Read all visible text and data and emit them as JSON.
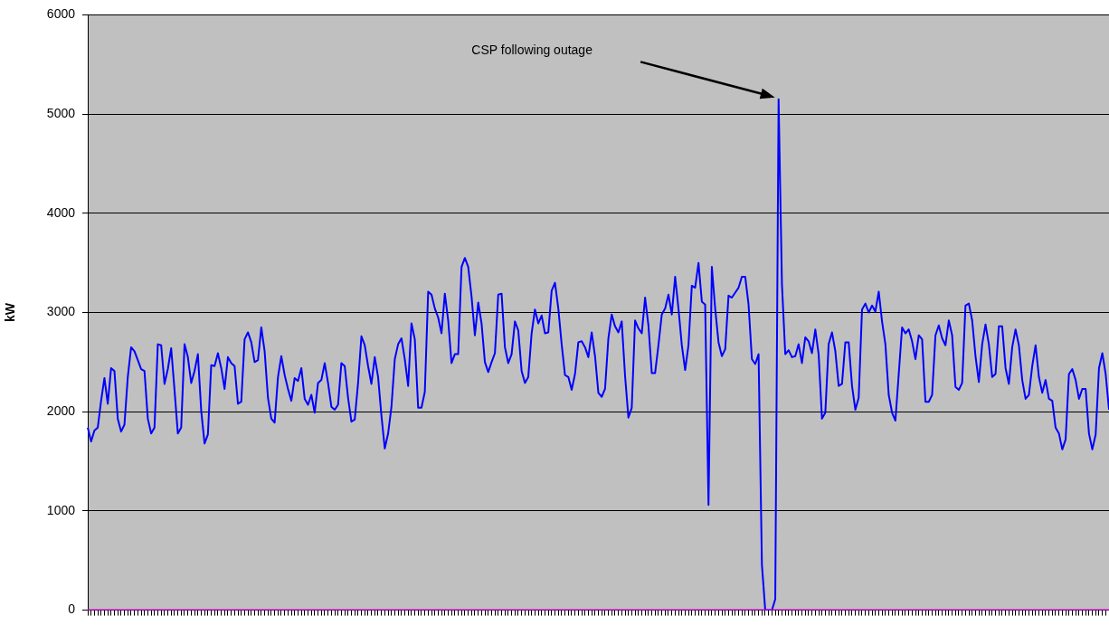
{
  "chart_data": {
    "type": "line",
    "ylabel": "kW",
    "ylim": [
      0,
      6000
    ],
    "yticks": [
      0,
      1000,
      2000,
      3000,
      4000,
      5000,
      6000
    ],
    "grid": "y",
    "tick_labels": "y",
    "legend": false,
    "marker": "none",
    "annotations": [
      "CSP following outage"
    ],
    "categories": [
      null,
      null,
      null,
      null,
      null,
      null,
      null,
      null,
      null,
      null,
      null,
      null,
      null,
      null,
      null,
      null,
      null,
      null,
      null,
      null,
      null,
      null,
      null,
      null,
      null,
      null,
      null,
      null,
      null,
      null,
      null,
      null,
      null,
      null,
      null,
      null,
      null,
      null,
      null,
      null,
      null,
      null,
      null,
      null,
      null,
      null,
      null,
      null,
      null,
      null,
      null,
      null,
      null,
      null,
      null,
      null,
      null,
      null,
      null,
      null,
      null,
      null,
      null,
      null,
      null,
      null,
      null,
      null,
      null,
      null,
      null,
      null,
      null,
      null,
      null,
      null,
      null,
      null,
      null,
      null,
      null,
      null,
      null,
      null,
      null,
      null,
      null,
      null,
      null,
      null,
      null,
      null,
      null,
      null,
      null,
      null,
      null,
      null,
      null,
      null,
      null,
      null,
      null,
      null,
      null,
      null,
      null,
      null,
      null,
      null,
      null,
      null,
      null,
      null,
      null,
      null,
      null,
      null,
      null,
      null,
      null,
      null,
      null,
      null,
      null,
      null,
      null,
      null,
      null,
      null,
      null,
      null,
      null,
      null,
      null,
      null,
      null,
      null,
      null,
      null,
      null,
      null,
      null,
      null,
      null,
      null,
      null,
      null,
      null,
      null,
      null,
      null,
      null,
      null,
      null,
      null,
      null,
      null,
      null,
      null,
      null,
      null,
      null,
      null,
      null,
      null,
      null,
      null,
      null,
      null,
      null,
      null,
      null,
      null,
      null,
      null,
      null,
      null,
      null,
      null,
      null,
      null,
      null,
      null,
      null,
      null,
      null,
      null,
      null,
      null,
      null,
      null,
      null,
      null,
      null,
      null,
      null,
      null,
      null,
      null,
      null,
      null,
      null,
      null,
      null,
      null,
      null,
      null,
      null,
      null,
      null,
      null,
      null,
      null,
      null,
      null,
      null,
      null,
      null,
      null,
      null,
      null,
      null,
      null,
      null,
      null,
      null,
      null,
      null,
      null,
      null,
      null,
      null,
      null,
      null,
      null,
      null,
      null,
      null,
      null,
      null,
      null,
      null,
      null,
      null,
      null,
      null,
      null,
      null,
      null,
      null,
      null,
      null,
      null,
      null,
      null,
      null,
      null,
      null,
      null,
      null,
      null,
      null,
      null,
      null,
      null,
      null,
      null,
      null,
      null,
      null,
      null,
      null,
      null,
      null,
      null,
      null,
      null,
      null,
      null,
      null,
      null,
      null,
      null,
      null,
      null,
      null,
      null,
      null,
      null,
      null,
      null,
      null,
      null,
      null,
      null,
      null,
      null,
      null,
      null,
      null,
      null,
      null,
      null,
      null,
      null,
      null
    ],
    "series": [
      {
        "color": "#ff00ff",
        "values": [
          0,
          0,
          0,
          0,
          0,
          0,
          0,
          0,
          0,
          0,
          0,
          0,
          0,
          0,
          0,
          0,
          0,
          0,
          0,
          0,
          0,
          0,
          0,
          0,
          0,
          0,
          0,
          0,
          0,
          0,
          0,
          0,
          0,
          0,
          0,
          0,
          0,
          0,
          0,
          0,
          0,
          0,
          0,
          0,
          0,
          0,
          0,
          0,
          0,
          0,
          0,
          0,
          0,
          0,
          0,
          0,
          0,
          0,
          0,
          0,
          0,
          0,
          0,
          0,
          0,
          0,
          0,
          0,
          0,
          0,
          0,
          0,
          0,
          0,
          0,
          0,
          0,
          0,
          0,
          0,
          0,
          0,
          0,
          0,
          0,
          0,
          0,
          0,
          0,
          0,
          0,
          0,
          0,
          0,
          0,
          0,
          0,
          0,
          0,
          0,
          0,
          0,
          0,
          0,
          0,
          0,
          0,
          0,
          0,
          0,
          0,
          0,
          0,
          0,
          0,
          0,
          0,
          0,
          0,
          0,
          0,
          0,
          0,
          0,
          0,
          0,
          0,
          0,
          0,
          0,
          0,
          0,
          0,
          0,
          0,
          0,
          0,
          0,
          0,
          0,
          0,
          0,
          0,
          0,
          0,
          0,
          0,
          0,
          0,
          0,
          0,
          0,
          0,
          0,
          0,
          0,
          0,
          0,
          0,
          0,
          0,
          0,
          0,
          0,
          0,
          0,
          0,
          0,
          0,
          0,
          0,
          0,
          0,
          0,
          0,
          0,
          0,
          0,
          0,
          0,
          0,
          0,
          0,
          0,
          0,
          0,
          0,
          0,
          0,
          0,
          0,
          0,
          0,
          0,
          0,
          0,
          0,
          0,
          0,
          0,
          0,
          0,
          0,
          0,
          0,
          0,
          0,
          0,
          0,
          0,
          0,
          0,
          0,
          0,
          0,
          0,
          0,
          0,
          0,
          0,
          0,
          0,
          0,
          0,
          0,
          0,
          0,
          0,
          0,
          0,
          0,
          0,
          0,
          0,
          0,
          0,
          0,
          0,
          0,
          0,
          0,
          0,
          0,
          0,
          0,
          0,
          0,
          0,
          0,
          0,
          0,
          0,
          0,
          0,
          0,
          0,
          0,
          0,
          0,
          0,
          0,
          0,
          0,
          0,
          0,
          0,
          0,
          0,
          0,
          0,
          0,
          0,
          0,
          0,
          0,
          0,
          0,
          0,
          0,
          0,
          0,
          0,
          0,
          0,
          0,
          0,
          0,
          0,
          0,
          0,
          0,
          0,
          0,
          0,
          0,
          0,
          0,
          0,
          0,
          0,
          0,
          0,
          0,
          0,
          0,
          0,
          0
        ]
      },
      {
        "color": "#0000ff",
        "values": [
          1840,
          1700,
          1810,
          1840,
          2110,
          2340,
          2080,
          2440,
          2410,
          1930,
          1800,
          1870,
          2350,
          2650,
          2610,
          2520,
          2430,
          2410,
          1930,
          1780,
          1840,
          2680,
          2670,
          2280,
          2430,
          2640,
          2220,
          1780,
          1840,
          2680,
          2550,
          2290,
          2410,
          2580,
          2010,
          1680,
          1770,
          2470,
          2460,
          2590,
          2440,
          2230,
          2550,
          2490,
          2460,
          2080,
          2100,
          2730,
          2800,
          2700,
          2500,
          2520,
          2850,
          2610,
          2140,
          1930,
          1890,
          2350,
          2560,
          2370,
          2230,
          2110,
          2340,
          2310,
          2440,
          2130,
          2070,
          2170,
          1990,
          2290,
          2320,
          2490,
          2290,
          2050,
          2020,
          2070,
          2490,
          2460,
          2140,
          1900,
          1920,
          2290,
          2760,
          2670,
          2460,
          2280,
          2550,
          2350,
          1960,
          1630,
          1780,
          2050,
          2530,
          2680,
          2740,
          2530,
          2260,
          2890,
          2730,
          2040,
          2040,
          2200,
          3210,
          3180,
          3040,
          2950,
          2790,
          3190,
          2920,
          2490,
          2580,
          2580,
          3460,
          3550,
          3460,
          3160,
          2770,
          3100,
          2890,
          2500,
          2400,
          2500,
          2590,
          3180,
          3190,
          2650,
          2490,
          2580,
          2910,
          2820,
          2410,
          2290,
          2350,
          2790,
          3030,
          2890,
          2970,
          2790,
          2800,
          3220,
          3300,
          3040,
          2680,
          2370,
          2350,
          2220,
          2380,
          2700,
          2710,
          2650,
          2550,
          2800,
          2560,
          2190,
          2150,
          2230,
          2740,
          2980,
          2860,
          2800,
          2910,
          2360,
          1940,
          2040,
          2920,
          2840,
          2790,
          3150,
          2870,
          2390,
          2390,
          2670,
          2980,
          3040,
          3180,
          2980,
          3360,
          3040,
          2670,
          2420,
          2670,
          3270,
          3250,
          3500,
          3110,
          3080,
          1060,
          3460,
          3040,
          2700,
          2560,
          2630,
          3170,
          3150,
          3200,
          3250,
          3360,
          3360,
          3080,
          2530,
          2480,
          2580,
          460,
          0,
          0,
          0,
          110,
          5150,
          3290,
          2580,
          2620,
          2550,
          2560,
          2680,
          2490,
          2750,
          2710,
          2590,
          2830,
          2580,
          1930,
          1990,
          2680,
          2800,
          2610,
          2260,
          2280,
          2700,
          2700,
          2260,
          2020,
          2140,
          3030,
          3090,
          3000,
          3070,
          3010,
          3210,
          2910,
          2680,
          2170,
          1990,
          1910,
          2380,
          2850,
          2790,
          2830,
          2710,
          2530,
          2770,
          2730,
          2100,
          2100,
          2170,
          2770,
          2870,
          2740,
          2670,
          2920,
          2770,
          2250,
          2220,
          2290,
          3070,
          3090,
          2920,
          2560,
          2300,
          2680,
          2880,
          2680,
          2350,
          2380,
          2860,
          2860,
          2440,
          2280,
          2650,
          2830,
          2670,
          2320,
          2130,
          2170,
          2460,
          2670,
          2350,
          2190,
          2320,
          2130,
          2110,
          1840,
          1780,
          1620,
          1720,
          2380,
          2430,
          2320,
          2130,
          2230,
          2230,
          1780,
          1620,
          1770,
          2440,
          2590,
          2380,
          2020
        ]
      }
    ]
  }
}
